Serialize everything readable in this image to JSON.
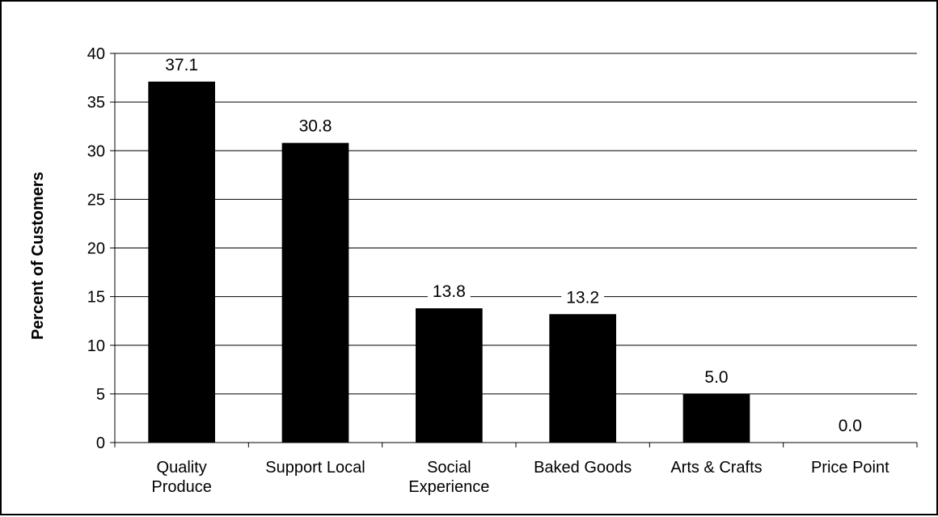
{
  "chart_data": {
    "type": "bar",
    "title": "",
    "xlabel": "",
    "ylabel": "Percent of Customers",
    "categories": [
      [
        "Quality",
        "Produce"
      ],
      [
        "Support Local"
      ],
      [
        "Social",
        "Experience"
      ],
      [
        "Baked Goods"
      ],
      [
        "Arts & Crafts"
      ],
      [
        "Price Point"
      ]
    ],
    "values": [
      37.1,
      30.8,
      13.8,
      13.2,
      5.0,
      0.0
    ],
    "value_labels": [
      "37.1",
      "30.8",
      "13.8",
      "13.2",
      "5.0",
      "0.0"
    ],
    "ylim": [
      0,
      40
    ],
    "yticks": [
      0,
      5,
      10,
      15,
      20,
      25,
      30,
      35,
      40
    ],
    "grid": true,
    "legend": "none",
    "colors": {
      "bar": "#000000",
      "grid": "#000000",
      "background": "#ffffff"
    }
  }
}
